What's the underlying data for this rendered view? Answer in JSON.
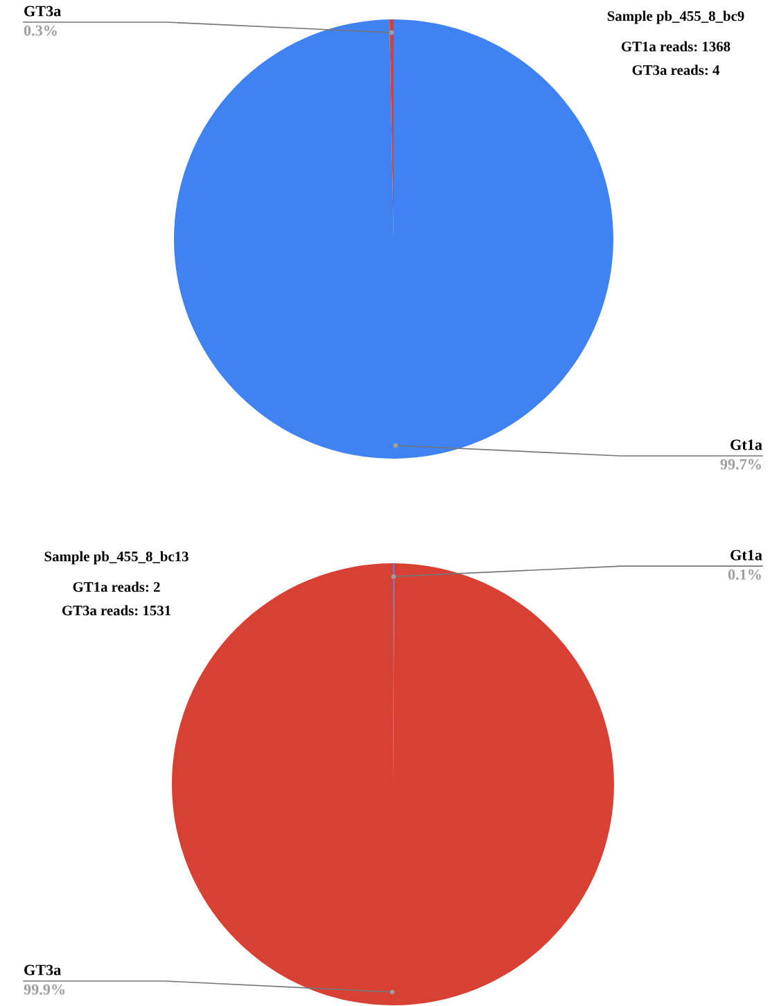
{
  "chart_data": [
    {
      "type": "pie",
      "title": "Sample pb_455_8_bc9",
      "annotations": [
        "GT1a reads: 1368",
        "GT3a reads: 4"
      ],
      "categories": [
        "Gt1a",
        "GT3a"
      ],
      "values": [
        99.7,
        0.3
      ],
      "colors": [
        "#3f83f2",
        "#d84033"
      ],
      "value_labels": [
        "99.7%",
        "0.3%"
      ],
      "legend": false
    },
    {
      "type": "pie",
      "title": "Sample pb_455_8_bc13",
      "annotations": [
        "GT1a reads: 2",
        "GT3a reads: 1531"
      ],
      "categories": [
        "Gt1a",
        "GT3a"
      ],
      "values": [
        0.1,
        99.9
      ],
      "colors": [
        "#3f83f2",
        "#d84033"
      ],
      "value_labels": [
        "0.1%",
        "99.9%"
      ],
      "legend": false
    }
  ]
}
